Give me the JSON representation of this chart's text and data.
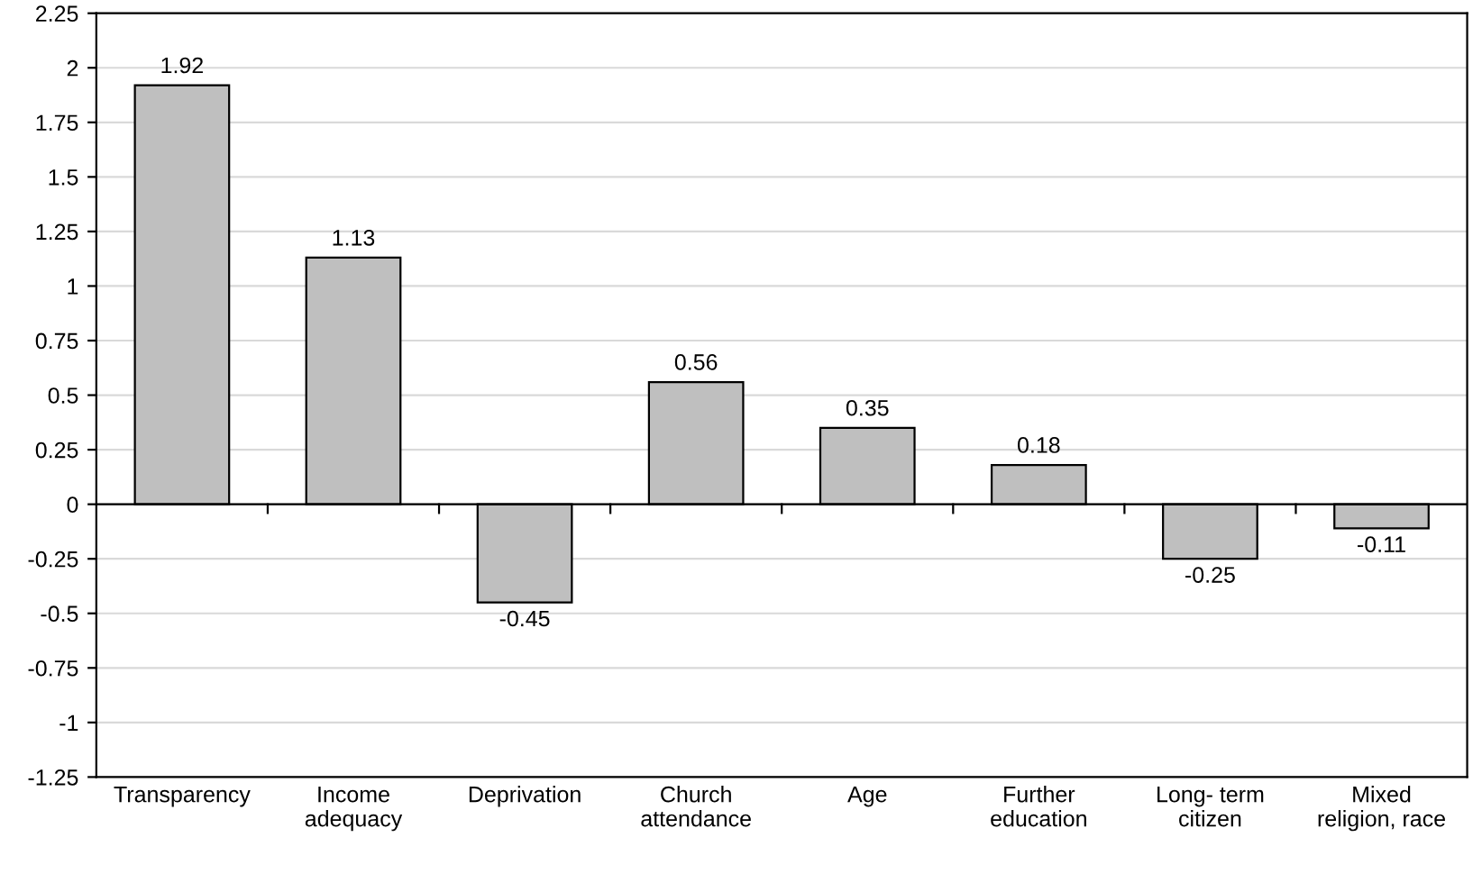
{
  "chart_data": {
    "type": "bar",
    "categories": [
      "Transparency",
      "Income\nadequacy",
      "Deprivation",
      "Church\nattendance",
      "Age",
      "Further\neducation",
      "Long- term\ncitizen",
      "Mixed\nreligion, race"
    ],
    "values": [
      1.92,
      1.13,
      -0.45,
      0.56,
      0.35,
      0.18,
      -0.25,
      -0.11
    ],
    "color": "#bfbfbf",
    "ylim": [
      -1.25,
      2.25
    ],
    "yticks": [
      -1.25,
      -1,
      -0.75,
      -0.5,
      -0.25,
      0,
      0.25,
      0.5,
      0.75,
      1,
      1.25,
      1.5,
      1.75,
      2,
      2.25
    ],
    "grid": "y",
    "data_labels": true,
    "ref_lines": [
      {
        "axis": "y",
        "value": 0,
        "color": "#000000"
      }
    ]
  }
}
